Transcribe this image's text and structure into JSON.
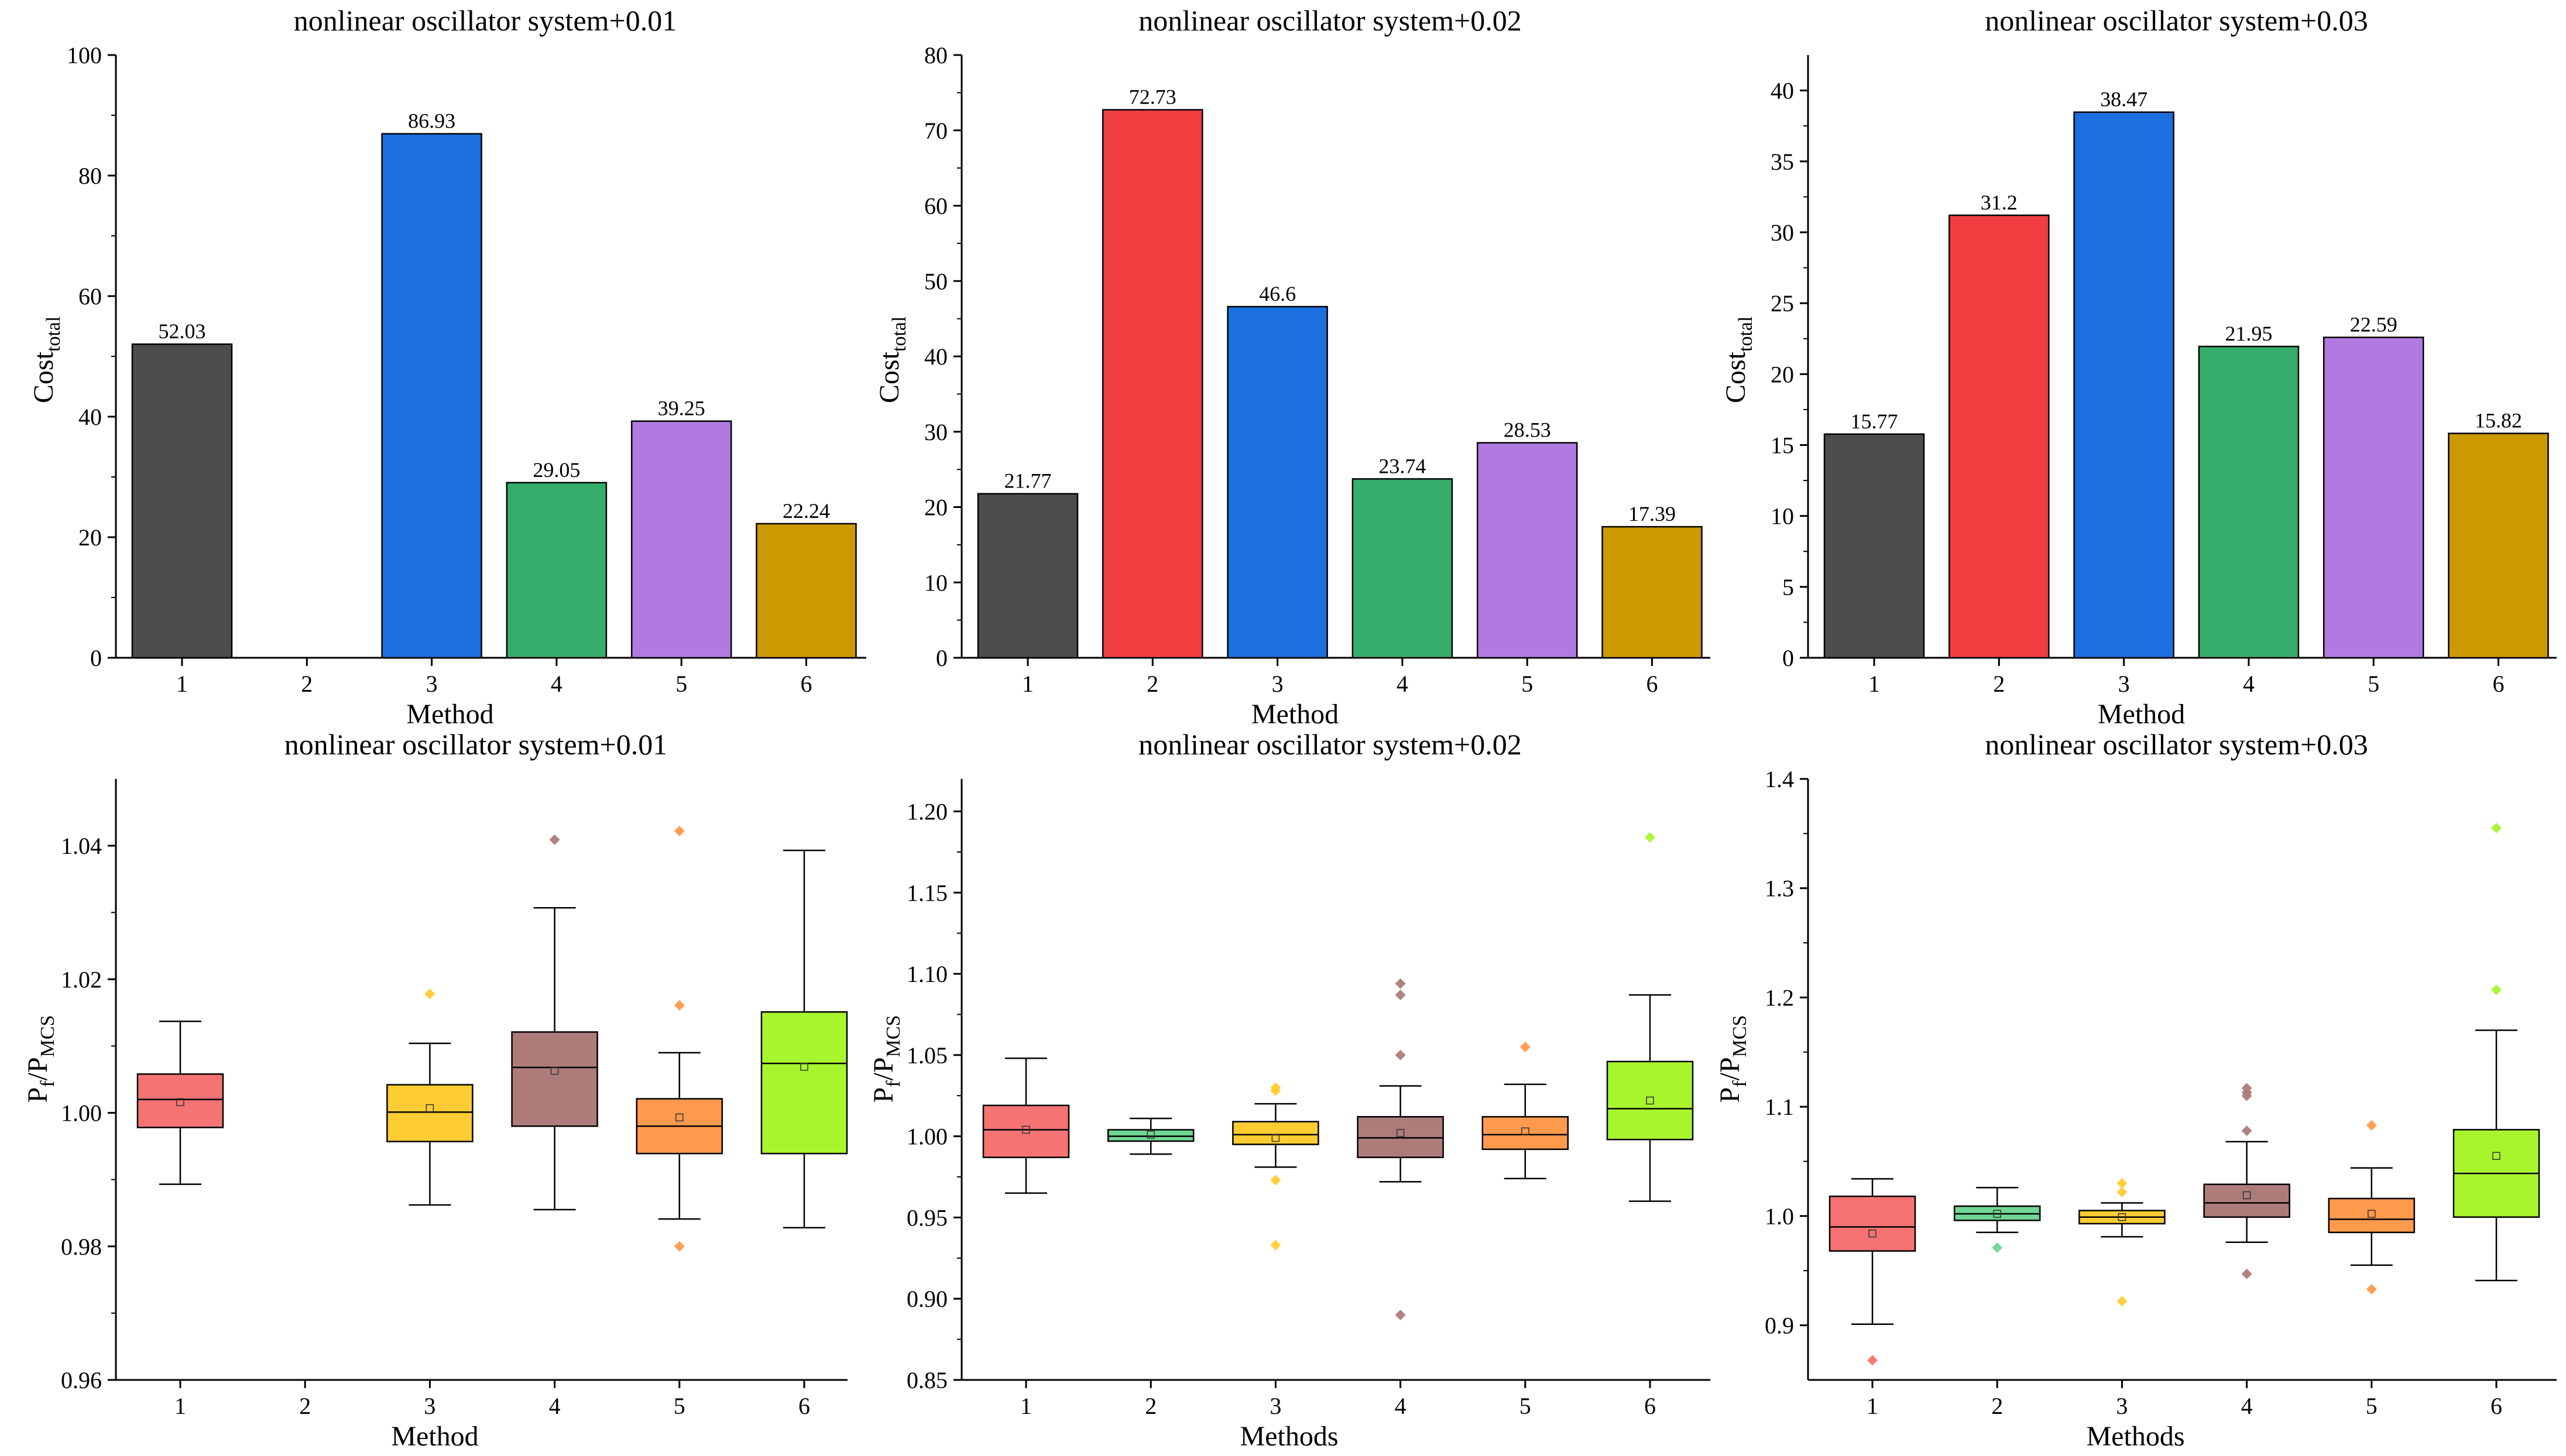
{
  "colors": {
    "bar": [
      "#4d4d4d",
      "#ef3d40",
      "#1b6fde",
      "#36ad6a",
      "#b07ae0",
      "#cc9900"
    ],
    "box": [
      "#f57373",
      "#6fd693",
      "#ffcc33",
      "#ae7b7b",
      "#ff9a4d",
      "#a8f52e"
    ]
  },
  "chart_data": [
    {
      "id": "bar1",
      "type": "bar",
      "title": "nonlinear oscillator system+0.01",
      "xlabel": "Method",
      "ylabel_main": "Cost",
      "ylabel_sub": "total",
      "categories": [
        "1",
        "2",
        "3",
        "4",
        "5",
        "6"
      ],
      "values": [
        52.03,
        null,
        86.93,
        29.05,
        39.25,
        22.24
      ],
      "labels": [
        "52.03",
        "",
        "86.93",
        "29.05",
        "39.25",
        "22.24"
      ],
      "ylim": [
        0,
        100
      ],
      "yticks": [
        0,
        20,
        40,
        60,
        80,
        100
      ],
      "ytick_labels": [
        "0",
        "20",
        "40",
        "60",
        "80",
        "100"
      ]
    },
    {
      "id": "bar2",
      "type": "bar",
      "title": "nonlinear oscillator system+0.02",
      "xlabel": "Method",
      "ylabel_main": "Cost",
      "ylabel_sub": "total",
      "categories": [
        "1",
        "2",
        "3",
        "4",
        "5",
        "6"
      ],
      "values": [
        21.77,
        72.73,
        46.6,
        23.74,
        28.53,
        17.39
      ],
      "labels": [
        "21.77",
        "72.73",
        "46.6",
        "23.74",
        "28.53",
        "17.39"
      ],
      "ylim": [
        0,
        80
      ],
      "yticks": [
        0,
        10,
        20,
        30,
        40,
        50,
        60,
        70,
        80
      ],
      "ytick_labels": [
        "0",
        "10",
        "20",
        "30",
        "40",
        "50",
        "60",
        "70",
        "80"
      ]
    },
    {
      "id": "bar3",
      "type": "bar",
      "title": "nonlinear oscillator system+0.03",
      "xlabel": "Method",
      "ylabel_main": "Cost",
      "ylabel_sub": "total",
      "categories": [
        "1",
        "2",
        "3",
        "4",
        "5",
        "6"
      ],
      "values": [
        15.77,
        31.2,
        38.47,
        21.95,
        22.59,
        15.82
      ],
      "labels": [
        "15.77",
        "31.2",
        "38.47",
        "21.95",
        "22.59",
        "15.82"
      ],
      "ylim": [
        0,
        42.5
      ],
      "yticks": [
        0,
        5,
        10,
        15,
        20,
        25,
        30,
        35,
        40
      ],
      "ytick_labels": [
        "0",
        "5",
        "10",
        "15",
        "20",
        "25",
        "30",
        "35",
        "40"
      ]
    },
    {
      "id": "box1",
      "type": "box",
      "title": "nonlinear oscillator system+0.01",
      "xlabel": "Method",
      "ylabel_main": "P",
      "ylabel_sub1": "f",
      "ylabel_mid": "/P",
      "ylabel_sub2": "MCS",
      "categories": [
        "1",
        "2",
        "3",
        "4",
        "5",
        "6"
      ],
      "ylim": [
        0.96,
        1.05
      ],
      "yticks": [
        0.96,
        0.98,
        1.0,
        1.02,
        1.04
      ],
      "ytick_labels": [
        "0.96",
        "0.98",
        "1.00",
        "1.02",
        "1.04"
      ],
      "boxes": [
        {
          "whislo": 0.9893,
          "q1": 0.9978,
          "med": 1.002,
          "q3": 1.0058,
          "whishi": 1.0137,
          "mean": 1.0016,
          "outliers": []
        },
        null,
        {
          "whislo": 0.9862,
          "q1": 0.9957,
          "med": 1.0001,
          "q3": 1.0042,
          "whishi": 1.0104,
          "mean": 1.0007,
          "outliers": [
            1.0178
          ]
        },
        {
          "whislo": 0.9855,
          "q1": 0.998,
          "med": 1.0068,
          "q3": 1.0121,
          "whishi": 1.0307,
          "mean": 1.0063,
          "outliers": [
            1.0409
          ]
        },
        {
          "whislo": 0.9841,
          "q1": 0.9939,
          "med": 0.998,
          "q3": 1.0021,
          "whishi": 1.009,
          "mean": 0.9993,
          "outliers": [
            0.98,
            1.0161,
            1.0422
          ]
        },
        {
          "whislo": 0.9828,
          "q1": 0.9939,
          "med": 1.0074,
          "q3": 1.0151,
          "whishi": 1.0393,
          "mean": 1.0069,
          "outliers": []
        }
      ]
    },
    {
      "id": "box2",
      "type": "box",
      "title": "nonlinear oscillator system+0.02",
      "xlabel": "Methods",
      "ylabel_main": "P",
      "ylabel_sub1": "f",
      "ylabel_mid": "/P",
      "ylabel_sub2": "MCS",
      "categories": [
        "1",
        "2",
        "3",
        "4",
        "5",
        "6"
      ],
      "ylim": [
        0.85,
        1.22
      ],
      "yticks": [
        0.85,
        0.9,
        0.95,
        1.0,
        1.05,
        1.1,
        1.15,
        1.2
      ],
      "ytick_labels": [
        "0.85",
        "0.90",
        "0.95",
        "1.00",
        "1.05",
        "1.10",
        "1.15",
        "1.20"
      ],
      "boxes": [
        {
          "whislo": 0.965,
          "q1": 0.987,
          "med": 1.004,
          "q3": 1.019,
          "whishi": 1.048,
          "mean": 1.004,
          "outliers": []
        },
        {
          "whislo": 0.989,
          "q1": 0.997,
          "med": 1.0,
          "q3": 1.004,
          "whishi": 1.011,
          "mean": 1.001,
          "outliers": []
        },
        {
          "whislo": 0.981,
          "q1": 0.995,
          "med": 1.001,
          "q3": 1.009,
          "whishi": 1.02,
          "mean": 0.999,
          "outliers": [
            0.933,
            0.973,
            1.028,
            1.03
          ]
        },
        {
          "whislo": 0.972,
          "q1": 0.987,
          "med": 0.999,
          "q3": 1.012,
          "whishi": 1.031,
          "mean": 1.002,
          "outliers": [
            0.89,
            1.05,
            1.087,
            1.094
          ]
        },
        {
          "whislo": 0.974,
          "q1": 0.992,
          "med": 1.001,
          "q3": 1.012,
          "whishi": 1.032,
          "mean": 1.003,
          "outliers": [
            1.055
          ]
        },
        {
          "whislo": 0.96,
          "q1": 0.998,
          "med": 1.017,
          "q3": 1.046,
          "whishi": 1.087,
          "mean": 1.022,
          "outliers": [
            1.184
          ]
        }
      ]
    },
    {
      "id": "box3",
      "type": "box",
      "title": "nonlinear oscillator system+0.03",
      "xlabel": "Methods",
      "ylabel_main": "P",
      "ylabel_sub1": "f",
      "ylabel_mid": "/P",
      "ylabel_sub2": "MCS",
      "categories": [
        "1",
        "2",
        "3",
        "4",
        "5",
        "6"
      ],
      "ylim": [
        0.85,
        1.4
      ],
      "yticks": [
        0.9,
        1.0,
        1.1,
        1.2,
        1.3,
        1.4
      ],
      "ytick_labels": [
        "0.9",
        "1.0",
        "1.1",
        "1.2",
        "1.3",
        "1.4"
      ],
      "boxes": [
        {
          "whislo": 0.901,
          "q1": 0.968,
          "med": 0.99,
          "q3": 1.018,
          "whishi": 1.034,
          "mean": 0.984,
          "outliers": [
            0.868
          ]
        },
        {
          "whislo": 0.985,
          "q1": 0.996,
          "med": 1.002,
          "q3": 1.009,
          "whishi": 1.026,
          "mean": 1.002,
          "outliers": [
            0.971
          ]
        },
        {
          "whislo": 0.981,
          "q1": 0.993,
          "med": 0.999,
          "q3": 1.005,
          "whishi": 1.012,
          "mean": 0.999,
          "outliers": [
            0.922,
            1.022,
            1.03
          ]
        },
        {
          "whislo": 0.976,
          "q1": 0.999,
          "med": 1.012,
          "q3": 1.029,
          "whishi": 1.068,
          "mean": 1.019,
          "outliers": [
            0.947,
            1.078,
            1.11,
            1.113,
            1.117
          ]
        },
        {
          "whislo": 0.955,
          "q1": 0.985,
          "med": 0.997,
          "q3": 1.016,
          "whishi": 1.044,
          "mean": 1.002,
          "outliers": [
            0.933,
            1.083
          ]
        },
        {
          "whislo": 0.941,
          "q1": 0.999,
          "med": 1.039,
          "q3": 1.079,
          "whishi": 1.17,
          "mean": 1.055,
          "outliers": [
            1.207,
            1.355
          ]
        }
      ]
    }
  ]
}
